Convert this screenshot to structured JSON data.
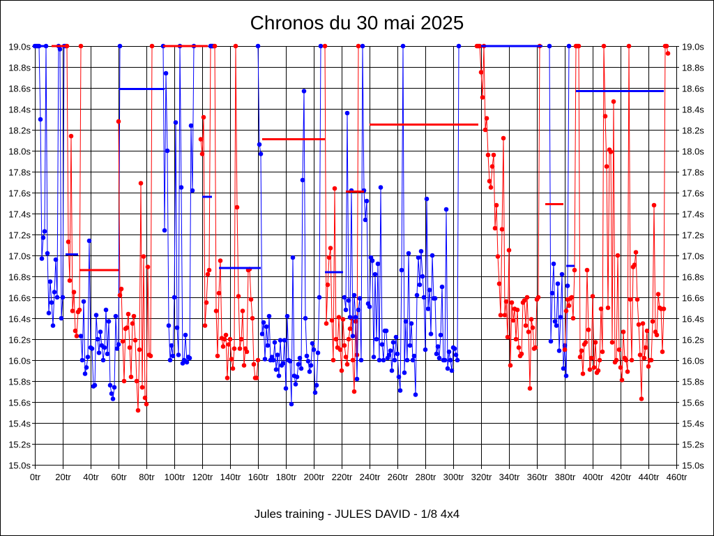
{
  "chart_data": {
    "type": "line",
    "title": "Chronos du 30 mai 2025",
    "subtitle": "Jules training - JULES DAVID - 1/8 4x4",
    "xlabel": "",
    "ylabel": "",
    "x_unit": "tr",
    "y_unit": "s",
    "xlim": [
      0,
      460
    ],
    "ylim": [
      15.0,
      19.0
    ],
    "x_tick_step": 20,
    "y_tick_step": 0.2,
    "grid": true,
    "colors": {
      "blue": "#0000ff",
      "red": "#ff0000",
      "grid": "#000000"
    },
    "series": [
      {
        "name": "blue-1",
        "color": "blue",
        "x_start": 0,
        "points": [
          19.0,
          19.0,
          19.0,
          19.0,
          18.3,
          16.97,
          17.17,
          17.23,
          19.0,
          17.02,
          16.45,
          16.75,
          16.55,
          16.33,
          16.65,
          16.96,
          16.6,
          19.0,
          18.97,
          16.4,
          16.6,
          19.0,
          19.0
        ]
      },
      {
        "name": "red-1",
        "color": "red",
        "x_start": 23,
        "points": [
          19.0,
          17.13,
          16.76,
          18.14,
          16.47,
          16.65,
          16.28,
          16.23,
          16.46,
          16.48,
          19.0
        ]
      },
      {
        "name": "blue-2",
        "color": "blue",
        "x_start": 33,
        "points": [
          16.23,
          16.0,
          16.56,
          15.87,
          15.93,
          16.03,
          17.14,
          16.12,
          16.11,
          15.75,
          15.76,
          16.43,
          16.2,
          16.07,
          16.27,
          16.14,
          16.0,
          16.12,
          16.48,
          16.06,
          16.37,
          15.76,
          15.68,
          15.63,
          15.74,
          16.42,
          16.11,
          16.15,
          19.0
        ]
      },
      {
        "name": "red-2",
        "color": "red",
        "x_start": 60,
        "points": [
          18.28,
          16.62,
          16.68,
          16.18,
          15.8,
          16.3,
          16.31,
          16.44,
          16.12,
          15.84,
          16.35,
          16.42,
          16.19,
          15.8,
          15.52,
          16.1,
          17.69,
          15.74,
          16.99,
          15.64,
          15.58,
          16.89,
          16.05,
          16.04,
          19.0
        ]
      },
      {
        "name": "blue-3",
        "color": "blue",
        "x_start": 92,
        "points": [
          19.0,
          17.24,
          18.74,
          18.0,
          16.33,
          16.0,
          16.14,
          16.04,
          16.6,
          18.27,
          16.31,
          16.05,
          19.0,
          17.65,
          15.97,
          16.0,
          16.24,
          15.98,
          16.03,
          16.02,
          18.24,
          17.62,
          19.0
        ]
      },
      {
        "name": "red-3",
        "color": "red",
        "x_start": 119,
        "points": [
          18.11,
          17.97,
          18.32,
          16.33,
          16.55,
          16.82,
          16.86,
          19.0,
          19.0
        ]
      },
      {
        "name": "blue-4",
        "color": "blue",
        "x_start": 126,
        "points": [
          19.0,
          19.0,
          19.0
        ]
      },
      {
        "name": "red-4",
        "color": "red",
        "x_start": 129,
        "points": [
          19.0,
          16.47,
          16.04,
          16.64,
          16.95,
          16.21,
          16.13,
          16.2,
          16.24,
          15.83,
          16.15,
          16.2,
          16.01,
          15.92,
          16.11,
          19.0,
          17.46,
          16.61,
          16.11,
          16.2,
          16.47,
          15.95,
          16.11,
          16.08,
          16.86,
          16.87,
          16.58,
          16.4,
          15.96,
          15.83,
          15.83,
          16.0
        ]
      },
      {
        "name": "blue-5",
        "color": "blue",
        "x_start": 160,
        "points": [
          19.0,
          18.06,
          17.97,
          16.25,
          16.36,
          16.01,
          16.32,
          16.14,
          16.42,
          16.0,
          16.03,
          16.0,
          16.17,
          15.91,
          16.05,
          15.85,
          16.19,
          15.95,
          15.97,
          16.19,
          15.73,
          16.42,
          16.0,
          15.99,
          15.58,
          16.98,
          15.85,
          15.77,
          15.84,
          15.96,
          16.02,
          15.92,
          17.72,
          18.57,
          16.4,
          16.04,
          15.99,
          15.89,
          15.95,
          16.16,
          16.1,
          15.69,
          15.76,
          16.07,
          16.6,
          19.0
        ]
      },
      {
        "name": "red-5",
        "color": "red",
        "x_start": 208,
        "points": [
          19.0,
          16.35,
          16.72,
          16.98,
          17.07,
          16.38,
          16.0,
          17.64,
          16.2,
          16.12,
          16.41,
          16.1,
          15.9,
          16.39,
          16.14,
          16.03,
          15.96,
          16.2,
          16.3,
          16.4,
          16.0,
          15.7,
          16.37,
          16.05,
          19.0
        ]
      },
      {
        "name": "blue-6",
        "color": "blue",
        "x_start": 222,
        "points": [
          16.6,
          16.48,
          18.36,
          16.57,
          16.41,
          17.62,
          16.23,
          16.62,
          16.41,
          15.82,
          16.48,
          16.59,
          16.0,
          19.0,
          17.62,
          17.34,
          17.52,
          16.54,
          16.51,
          16.98,
          16.95,
          16.03,
          16.82,
          16.2,
          16.92,
          16.0,
          17.65,
          16.15,
          16.0,
          16.28,
          16.28,
          16.02,
          16.05,
          16.09,
          15.9,
          16.17,
          16.0,
          16.22,
          16.06,
          15.84,
          15.71,
          16.86,
          19.0,
          15.88,
          16.37,
          16.0,
          17.02,
          16.14,
          16.35,
          16.0,
          16.04,
          15.67,
          16.62,
          16.98,
          16.72,
          17.04,
          16.8,
          16.6,
          16.1,
          17.54,
          16.49,
          16.67,
          16.25,
          17.0,
          16.59,
          16.59,
          16.06,
          16.13,
          16.02,
          16.24,
          16.7,
          16.0,
          16.0,
          17.44,
          15.92,
          16.08,
          16.0,
          15.9,
          16.12,
          16.11,
          16.05,
          16.0,
          19.0
        ]
      },
      {
        "name": "red-6",
        "color": "red",
        "x_start": 317,
        "points": [
          19.0,
          19.0,
          19.0,
          18.75,
          18.51,
          19.0,
          18.2,
          18.31,
          17.96,
          17.71,
          17.65,
          17.85,
          17.96,
          17.26,
          17.48,
          16.99,
          16.73,
          16.43,
          17.25,
          18.12,
          16.43,
          16.56,
          16.22,
          17.05,
          15.95,
          16.55,
          16.38,
          16.49,
          16.2,
          16.48,
          16.12,
          16.04,
          16.06,
          16.55,
          16.57,
          16.33,
          16.6,
          16.27,
          15.73,
          16.39,
          16.31,
          16.11,
          16.12,
          16.58,
          16.6,
          19.0
        ]
      },
      {
        "name": "blue-7",
        "color": "blue",
        "x_start": 369,
        "points": [
          19.0,
          16.18,
          16.64,
          16.92,
          16.37,
          16.33,
          16.73,
          16.09,
          16.41,
          16.82,
          15.92,
          16.14,
          15.85,
          16.71,
          19.0
        ]
      },
      {
        "name": "red-7",
        "color": "red",
        "x_start": 380,
        "points": [
          16.1,
          16.47,
          16.58,
          16.52,
          16.59,
          16.6,
          16.4,
          16.86,
          19.0,
          19.0,
          19.0,
          16.03,
          16.09,
          15.87,
          16.15,
          16.17,
          16.86,
          16.29,
          15.91,
          16.02,
          16.61,
          15.93,
          16.17,
          15.88,
          15.9,
          16.0,
          16.49,
          16.08,
          19.0,
          18.33,
          17.85,
          16.5,
          18.01,
          17.99,
          16.17,
          18.47,
          15.98,
          16.0,
          17.0,
          16.1,
          15.93,
          15.81,
          16.27,
          16.02,
          16.0,
          15.89,
          19.0,
          16.58,
          16.0,
          16.89,
          16.91,
          17.03,
          16.58,
          16.34,
          16.05,
          15.63,
          16.35,
          16.02,
          16.12,
          16.28,
          15.94,
          16.0,
          16.0,
          16.37,
          17.48,
          16.27,
          16.24,
          16.63,
          16.5,
          16.49,
          16.08,
          16.49,
          19.0,
          19.0,
          18.93
        ]
      }
    ],
    "segments": [
      {
        "color": "blue",
        "x": [
          0,
          9
        ],
        "y": 19.0
      },
      {
        "color": "red",
        "x": [
          12,
          22
        ],
        "y": 19.0
      },
      {
        "color": "blue",
        "x": [
          22,
          31
        ],
        "y": 17.01
      },
      {
        "color": "red",
        "x": [
          32,
          60
        ],
        "y": 16.86
      },
      {
        "color": "blue",
        "x": [
          60,
          93
        ],
        "y": 18.59
      },
      {
        "color": "red",
        "x": [
          92,
          124
        ],
        "y": 19.0
      },
      {
        "color": "blue",
        "x": [
          120,
          127
        ],
        "y": 17.56
      },
      {
        "color": "blue",
        "x": [
          132,
          162
        ],
        "y": 16.88
      },
      {
        "color": "red",
        "x": [
          163,
          208
        ],
        "y": 18.11
      },
      {
        "color": "blue",
        "x": [
          208,
          221
        ],
        "y": 16.84
      },
      {
        "color": "red",
        "x": [
          223,
          236
        ],
        "y": 17.61
      },
      {
        "color": "red",
        "x": [
          240,
          318
        ],
        "y": 18.25
      },
      {
        "color": "blue",
        "x": [
          320,
          364
        ],
        "y": 19.0
      },
      {
        "color": "red",
        "x": [
          366,
          379
        ],
        "y": 17.49
      },
      {
        "color": "blue",
        "x": [
          381,
          387
        ],
        "y": 16.9
      },
      {
        "color": "blue",
        "x": [
          388,
          451
        ],
        "y": 18.57
      }
    ]
  }
}
